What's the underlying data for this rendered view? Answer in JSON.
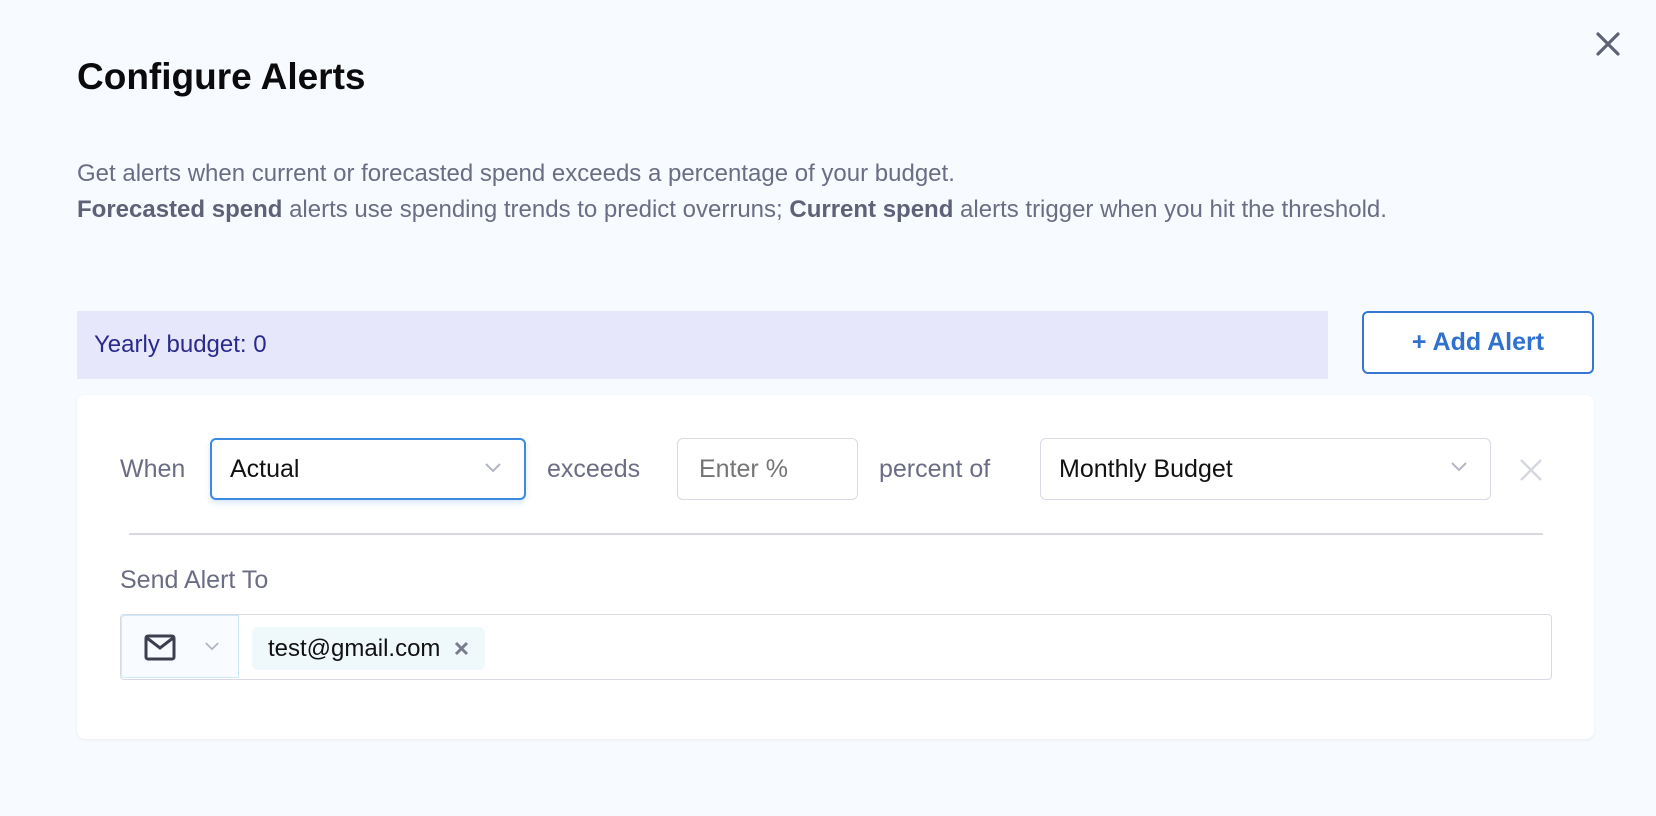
{
  "dialog": {
    "title": "Configure Alerts",
    "close_icon": "close-icon",
    "description": {
      "line1": "Get alerts when current or forecasted spend exceeds a percentage of your budget.",
      "bold1": "Forecasted spend",
      "text1": " alerts use spending trends to predict overruns; ",
      "bold2": "Current spend",
      "text2": " alerts trigger when you hit the threshold."
    },
    "budget_label": "Yearly budget: 0",
    "add_alert_label": "+ Add Alert"
  },
  "alert": {
    "when_label": "When",
    "type_value": "Actual",
    "exceeds_label": "exceeds",
    "percent_placeholder": "Enter %",
    "percent_value": "",
    "percent_of_label": "percent of",
    "budget_type_value": "Monthly Budget",
    "send_to_label": "Send Alert To",
    "channel_icon": "mail-icon",
    "recipients": [
      "test@gmail.com"
    ]
  },
  "colors": {
    "accent": "#3478d4",
    "budget_bg": "#e6e7fa",
    "budget_text": "#2a2a8c"
  }
}
